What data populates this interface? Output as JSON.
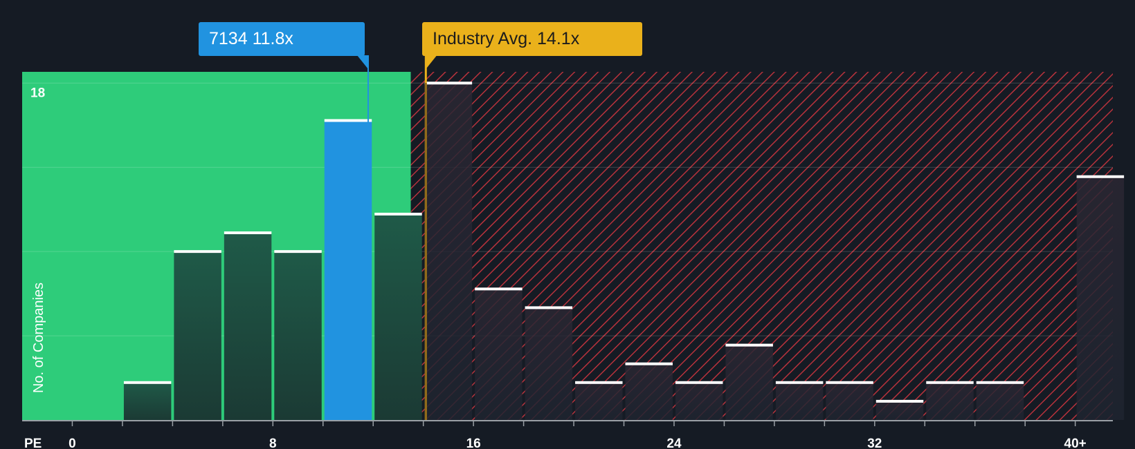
{
  "colors": {
    "background": "#151b24",
    "undervalued_zone": "#2ecc7a",
    "overvalued_zone": "#8b2f37",
    "bar": "#1f4a40",
    "bar_dark": "#2a2f3a",
    "company_bar": "#2193e0",
    "industry_line": "#eab11b",
    "bar_cap": "#ffffff"
  },
  "company_callout": {
    "ticker": "7134",
    "value": "11.8x"
  },
  "industry_callout": {
    "label": "Industry Avg.",
    "value": "14.1x"
  },
  "chart_data": {
    "type": "bar",
    "xlabel": "PE",
    "ylabel": "No. of Companies",
    "xlim": [
      -2,
      41.5
    ],
    "ylim": [
      0,
      18.6
    ],
    "x_ticks": [
      {
        "value": 0,
        "label": "0"
      },
      {
        "value": 8,
        "label": "8"
      },
      {
        "value": 16,
        "label": "16"
      },
      {
        "value": 24,
        "label": "24"
      },
      {
        "value": 32,
        "label": "32"
      },
      {
        "value": 40,
        "label": "40+"
      }
    ],
    "y_ticks": [
      {
        "value": 18,
        "label": "18"
      }
    ],
    "gridlines_y": [
      4.5,
      9,
      13.5,
      18
    ],
    "bin_width": 2,
    "bins": [
      {
        "start": 2,
        "count": 2
      },
      {
        "start": 4,
        "count": 9
      },
      {
        "start": 6,
        "count": 10
      },
      {
        "start": 8,
        "count": 9
      },
      {
        "start": 10,
        "count": 16,
        "highlight": true
      },
      {
        "start": 12,
        "count": 11
      },
      {
        "start": 14,
        "count": 18
      },
      {
        "start": 16,
        "count": 7
      },
      {
        "start": 18,
        "count": 6
      },
      {
        "start": 20,
        "count": 2
      },
      {
        "start": 22,
        "count": 3
      },
      {
        "start": 24,
        "count": 2
      },
      {
        "start": 26,
        "count": 4
      },
      {
        "start": 28,
        "count": 2
      },
      {
        "start": 30,
        "count": 2
      },
      {
        "start": 32,
        "count": 1
      },
      {
        "start": 34,
        "count": 2
      },
      {
        "start": 36,
        "count": 2
      },
      {
        "start": 40,
        "count": 13
      }
    ],
    "company_value": 11.8,
    "industry_value": 14.1,
    "undervalued_until": 13.5
  }
}
